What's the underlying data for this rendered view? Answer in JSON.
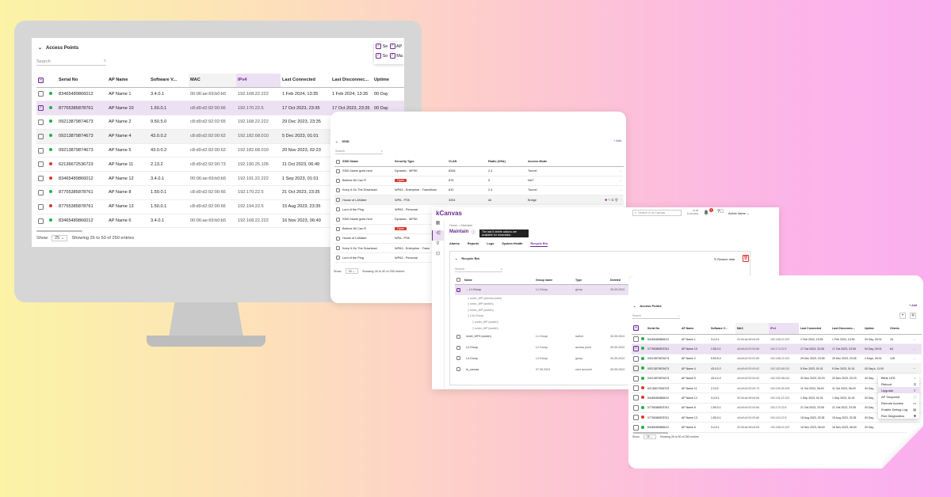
{
  "monitor_table": {
    "title": "Access Points",
    "search_placeholder": "Search",
    "columns": [
      "Serial No",
      "AP Name",
      "Software V...",
      "MAC",
      "IPv4",
      "Last Connected",
      "Last Disconnec...",
      "Uptime"
    ],
    "rows": [
      {
        "status": "online",
        "selected": false,
        "cells": [
          "83465489866012",
          "AP Name 1",
          "3.4.0.1",
          "00:06:ae:69:b0:b5",
          "192.168.22.222",
          "1 Feb 2024, 13:35",
          "1 Feb 2024, 13:35",
          "00 Day"
        ]
      },
      {
        "status": "online",
        "selected": true,
        "cells": [
          "87755385878761",
          "AP Name 10",
          "1.50.0.1",
          "c8:d9:d2:92:00:66",
          "192.170.22.5",
          "17 Oct 2023, 23:35",
          "17 Oct 2023, 23:35",
          "00 Day"
        ]
      },
      {
        "status": "online",
        "selected": false,
        "cells": [
          "09213879874673",
          "AP Name 2",
          "9.50.5.0",
          "c8:d9:d2:92:02:65",
          "192.168.22.222",
          "29 Dec 2023, 23:35",
          "29 Dec 2023, 23:35",
          "4 Days"
        ]
      },
      {
        "status": "online",
        "selected": false,
        "hover": true,
        "cells": [
          "09213879874673",
          "AP Name 4",
          "43.0.0.2",
          "c8:d9:d2:92:00:62",
          "192.182.68.010",
          "5 Dec 2023, 01:01",
          "5 Dec 2023, 01:01",
          "00 Day"
        ]
      },
      {
        "status": "online",
        "selected": false,
        "cells": [
          "09213879874673",
          "AP Name 5",
          "43.0.0.2",
          "c8:d9:d2:92:00:62",
          "192.182.68.010",
          "20 Nov 2023, 02:23",
          "20 Nov 2023, 02:23",
          "00 Day"
        ]
      },
      {
        "status": "offline",
        "selected": false,
        "cells": [
          "62136672536723",
          "AP Name 11",
          "2.13.2",
          "c8:d9:d2:92:00:73",
          "192.190.25.105",
          "11 Oct 2023, 06:49",
          "11 Oct 2023, 06:49",
          "00 Day"
        ]
      },
      {
        "status": "offline",
        "selected": false,
        "cells": [
          "83465489866012",
          "AP Name 12",
          "3.4.0.1",
          "00:06:ae:69:b0:b5",
          "192.191.22.222",
          "1 Sep 2023, 01:01",
          "1 Sep 2023, 01:01",
          "00 Day"
        ]
      },
      {
        "status": "online",
        "selected": false,
        "cells": [
          "87755385878761",
          "AP Name 8",
          "1.50.0.1",
          "c8:d9:d2:92:00:66",
          "192.170.22.5",
          "21 Oct 2023, 23:35",
          "21 Oct 2023, 23:35",
          "00 Day"
        ]
      },
      {
        "status": "offline",
        "selected": false,
        "cells": [
          "87755385878761",
          "AP Name 13",
          "1.50.0.1",
          "c8:d9:d2:92:00:66",
          "192.194.22.5",
          "15 Aug 2023, 23:35",
          "15 Aug 2023, 23:35",
          "00 Day"
        ]
      },
      {
        "status": "online",
        "selected": false,
        "cells": [
          "83465489866012",
          "AP Name 6",
          "3.4.0.1",
          "00:06:ae:69:b0:b5",
          "192.168.22.222",
          "16 Nov 2023, 06:49",
          "16 Nov 2023, 06:49",
          "00 Day"
        ]
      }
    ],
    "column_picker": [
      "Se",
      "AP",
      "So",
      "Ma"
    ],
    "footer": {
      "show_label": "Show",
      "page_size": "25",
      "summary": "Showing 26 to 50 of 250 entries"
    }
  },
  "ssid_table": {
    "title": "SSID",
    "add_label": "+ Add",
    "search_placeholder": "Search",
    "columns": [
      "SSID Name",
      "Security Type",
      "VLAN",
      "Radio (GHz)",
      "Access Mode"
    ],
    "rows": [
      {
        "cells": [
          "SSID Name goes here",
          "Dynamic - MPSK",
          "8348",
          "2.4",
          "Tunnel"
        ]
      },
      {
        "cells": [
          "Believe Wi Can Fi",
          "Open",
          "875",
          "5",
          "NAT"
        ],
        "badge": true
      },
      {
        "cells": [
          "Keep It On The Download",
          "WPA3 - Enterprise - Transitions",
          "610",
          "2.4",
          "Tunnel"
        ]
      },
      {
        "cells": [
          "House of LANister",
          "WPA - PSK",
          "3254",
          "All",
          "Bridge"
        ],
        "hover": true
      },
      {
        "cells": [
          "Lord of the Ping",
          "WPA3 - Personal",
          "",
          "",
          ""
        ]
      },
      {
        "cells": [
          "SSID Name goes here",
          "Dynamic - MPSK",
          "",
          "",
          ""
        ]
      },
      {
        "cells": [
          "Believe Wi Can Fi",
          "Open",
          "",
          "",
          ""
        ],
        "badge": true
      },
      {
        "cells": [
          "House of LANister",
          "WPA - PSK",
          "",
          "",
          ""
        ]
      },
      {
        "cells": [
          "Keep It On The Download",
          "WPA3 - Enterprise - Transitions",
          "",
          "",
          ""
        ]
      },
      {
        "cells": [
          "Lord of the Ping",
          "WPA3 - Personal",
          "",
          "",
          ""
        ]
      }
    ],
    "footer": {
      "show_label": "Show",
      "page_size": "25",
      "summary": "Showing 26 to 50 of 250 entries"
    }
  },
  "canvas_app": {
    "logo": "Canvas",
    "search_placeholder": "Search in la Canvas",
    "clock": "13:00\n14.03.2024",
    "notification_count": "1",
    "user": "Admin Name",
    "breadcrumb": [
      "Home",
      "Maintain"
    ],
    "page_title": "Maintain",
    "tooltip": "The last 5 delete actions are available for restoration.",
    "tabs": [
      "Alarms",
      "Reports",
      "Logs",
      "System Health",
      "Recycle Bin"
    ],
    "active_tab": "Recycle Bin",
    "card_title": "Recycle Bin",
    "restore_label": "Restore data",
    "search_placeholder2": "Search",
    "columns": [
      "Name",
      "Group name",
      "Type",
      "Deleted"
    ],
    "rows": [
      {
        "name": "L1.Group",
        "group": "L1.Group",
        "type": "group",
        "deleted": "30.05.2024",
        "selected": true
      },
      {
        "name": "ionex_WP (access point)",
        "child": 1
      },
      {
        "name": "ionex_WP (switch)",
        "child": 1
      },
      {
        "name": "ionex_WP (switch)",
        "child": 1
      },
      {
        "name": "L1b.Group",
        "child": 1
      },
      {
        "name": "ionlet_WP (switch)",
        "child": 2
      },
      {
        "name": "ionlet_WP (switch)",
        "child": 2
      },
      {
        "name": "ionlet_WP3 (switch)",
        "group": "L1.Group",
        "type": "switch",
        "deleted": "30.05.2024"
      },
      {
        "name": "L2.Group",
        "group": "L2.Group",
        "type": "access point",
        "deleted": "30.05.2024"
      },
      {
        "name": "L4.Group",
        "group": "L4.Group",
        "type": "group",
        "deleted": "30.05.2024"
      },
      {
        "name": "la_canvas",
        "group": "07.05.2024",
        "type": "user account",
        "deleted": "30.05.2024"
      }
    ]
  },
  "ap_panel": {
    "title": "Access Points",
    "add_label": "+ Add",
    "search_placeholder": "Search",
    "columns": [
      "Serial No",
      "AP Name",
      "Software V...",
      "MAC",
      "IPv4",
      "Last Connected",
      "Last Disconnec...",
      "Uptime",
      "Clients"
    ],
    "rows": [
      {
        "status": "online",
        "cells": [
          "83465489866012",
          "AP Name 1",
          "3.4.0.1",
          "00:06:ae:69:b0:b5",
          "192.168.22.222",
          "1 Feb 2024, 13:35",
          "1 Feb 2024, 13:35",
          "00 Day, 00:01",
          "16"
        ]
      },
      {
        "status": "online",
        "selected": true,
        "cells": [
          "07755385878761",
          "AP Name 10",
          "1.50.0.1",
          "c8:d9:d2:92:00:66",
          "192.170.22.5",
          "17 Oct 2023, 23:35",
          "17 Oct 2023, 23:35",
          "00 Day, 00:01",
          "64"
        ]
      },
      {
        "status": "online",
        "cells": [
          "09213879874673",
          "AP Name 2",
          "9.50.5.0",
          "c8:d9:d2:92:02:65",
          "192.168.22.222",
          "29 Dec 2023, 23:35",
          "29 Dec 2023, 23:35",
          "4 Days, 00:01",
          "128"
        ]
      },
      {
        "status": "online",
        "hover": true,
        "cells": [
          "09213879874673",
          "AP Name 4",
          "43.0.0.2",
          "c8:d9:d2:92:00:62",
          "192.182.68.010",
          "5 Dec 2023, 01:01",
          "5 Dec 2023, 01:01",
          "00 Day's, 11:00",
          ""
        ]
      },
      {
        "status": "online",
        "cells": [
          "09213879874673",
          "AP Name 5",
          "43.0.0.2",
          "c8:d9:d2:92:00:62",
          "192.182.68.010",
          "20 Nov 2023, 02:23",
          "20 Nov 2023, 02:23",
          "00 Day,",
          ""
        ]
      },
      {
        "status": "offline",
        "cells": [
          "62136672536723",
          "AP Name 11",
          "2.13.2",
          "c8:d9:d2:92:00:73",
          "192.190.25.105",
          "11 Oct 2023, 06:49",
          "11 Oct 2023, 06:49",
          "00 Day,",
          ""
        ]
      },
      {
        "status": "offline",
        "cells": [
          "83465489866012",
          "AP Name 12",
          "3.4.0.1",
          "00:06:ae:69:b0:b5",
          "192.191.22.222",
          "1 Sep 2023, 01:01",
          "1 Sep 2023, 01:01",
          "00 Day,",
          ""
        ]
      },
      {
        "status": "online",
        "cells": [
          "07755385878761",
          "AP Name 8",
          "1.50.0.1",
          "c8:d9:d2:92:00:66",
          "192.170.22.5",
          "21 Oct 2023, 23:35",
          "21 Oct 2023, 23:35",
          "00 Day,",
          ""
        ]
      },
      {
        "status": "offline",
        "cells": [
          "07755385878761",
          "AP Name 13",
          "1.50.0.1",
          "c8:d9:d2:92:00:66",
          "192.194.22.5",
          "15 Aug 2023, 23:35",
          "15 Aug 2023, 23:35",
          "00 Day,",
          ""
        ]
      },
      {
        "status": "online",
        "cells": [
          "83465489866012",
          "AP Name 6",
          "3.4.0.1",
          "00:06:ae:69:b0:b5",
          "192.168.22.222",
          "16 Nov 2023, 06:49",
          "16 Nov 2023, 06:49",
          "00 Day,",
          ""
        ]
      }
    ],
    "context_menu": [
      {
        "label": "Blink LED",
        "icon": "bulb-icon"
      },
      {
        "label": "Reboot",
        "icon": "power-icon"
      },
      {
        "label": "Upgrade",
        "icon": "upgrade-icon",
        "active": true
      },
      {
        "label": "AP Snapshot",
        "icon": "snapshot-icon"
      },
      {
        "label": "Remote Access",
        "icon": "monitor-icon"
      },
      {
        "label": "Enable Debug Log",
        "icon": "file-icon"
      },
      {
        "label": "Run Diagnostics",
        "icon": "diagnostics-icon"
      }
    ],
    "footer": {
      "show_label": "Show",
      "page_size": "25",
      "summary": "Showing 26 to 50 of 250 entries"
    }
  },
  "colors": {
    "accent": "#6b2a92",
    "online": "#1fb14a",
    "offline": "#e0352b",
    "selected_row": "#ece0f3",
    "open_badge": "#d9342b"
  }
}
